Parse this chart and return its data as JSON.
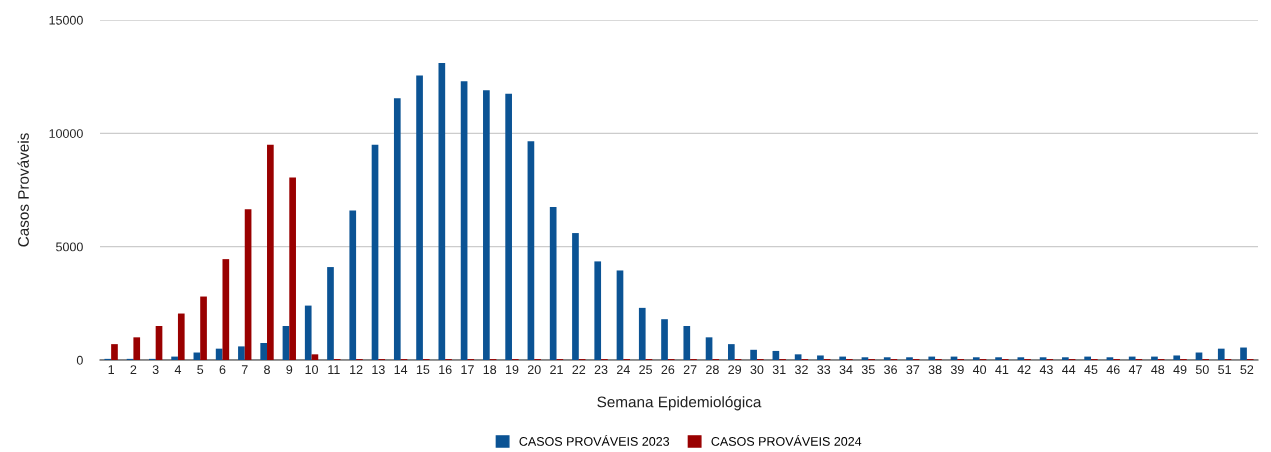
{
  "chart_data": {
    "type": "bar",
    "xlabel": "Semana Epidemiológica",
    "ylabel": "Casos Prováveis",
    "categories": [
      "1",
      "2",
      "3",
      "4",
      "5",
      "6",
      "7",
      "8",
      "9",
      "10",
      "11",
      "12",
      "13",
      "14",
      "15",
      "16",
      "17",
      "18",
      "19",
      "20",
      "21",
      "22",
      "23",
      "24",
      "25",
      "26",
      "27",
      "28",
      "29",
      "30",
      "31",
      "32",
      "33",
      "34",
      "35",
      "36",
      "37",
      "38",
      "39",
      "40",
      "41",
      "42",
      "43",
      "44",
      "45",
      "46",
      "47",
      "48",
      "49",
      "50",
      "51",
      "52"
    ],
    "series": [
      {
        "name": "CASOS PROVÁVEIS 2023",
        "color": "#0b5394",
        "values": [
          50,
          50,
          50,
          150,
          330,
          500,
          600,
          750,
          1500,
          2400,
          4100,
          6600,
          9500,
          11550,
          12550,
          13100,
          12300,
          11900,
          11750,
          9650,
          6750,
          5600,
          4350,
          3950,
          2300,
          1800,
          1500,
          1000,
          700,
          450,
          400,
          250,
          200,
          150,
          120,
          120,
          120,
          150,
          150,
          120,
          120,
          120,
          120,
          120,
          150,
          120,
          150,
          150,
          200,
          330,
          500,
          550
        ]
      },
      {
        "name": "CASOS PROVÁVEIS 2024",
        "color": "#990000",
        "values": [
          700,
          1000,
          1500,
          2050,
          2800,
          4450,
          6650,
          9500,
          8050,
          250,
          40,
          40,
          40,
          40,
          40,
          40,
          40,
          40,
          40,
          40,
          40,
          40,
          40,
          40,
          40,
          40,
          40,
          40,
          40,
          40,
          40,
          40,
          40,
          40,
          40,
          40,
          40,
          40,
          40,
          40,
          40,
          40,
          40,
          40,
          40,
          40,
          40,
          40,
          40,
          40,
          40,
          40
        ]
      }
    ],
    "ylim": [
      0,
      15000
    ],
    "yticks": [
      0,
      5000,
      10000,
      15000
    ],
    "grid": "y",
    "legend": "bottom"
  }
}
